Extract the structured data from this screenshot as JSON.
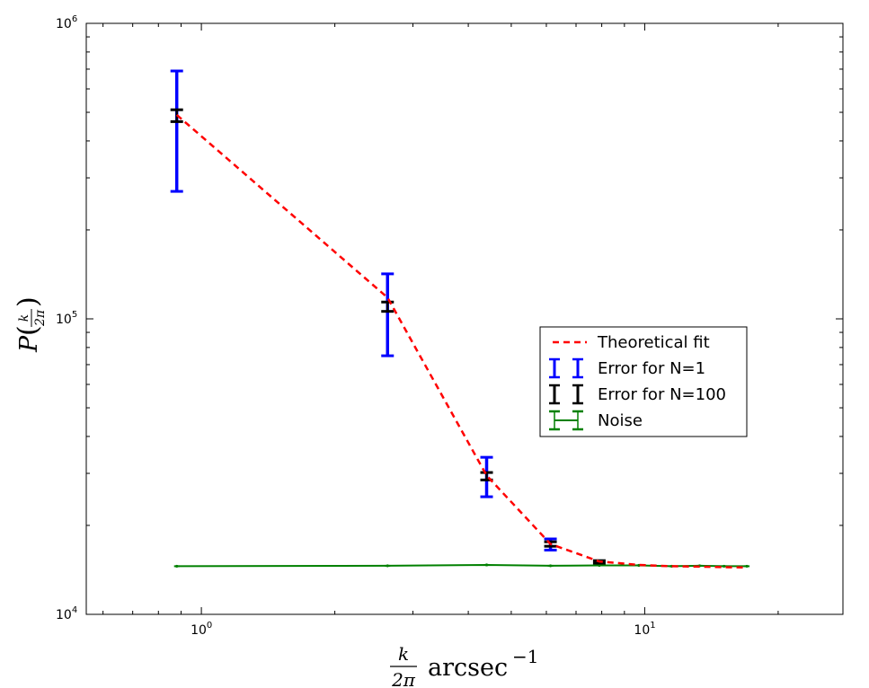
{
  "chart_data": {
    "type": "line",
    "xscale": "log",
    "yscale": "log",
    "xlim": [
      0.55,
      28
    ],
    "ylim": [
      10000,
      1000000
    ],
    "xticks": [
      {
        "base": "10",
        "exp": "0",
        "value": 1
      },
      {
        "base": "10",
        "exp": "1",
        "value": 10
      }
    ],
    "yticks": [
      {
        "base": "10",
        "exp": "4",
        "value": 10000
      },
      {
        "base": "10",
        "exp": "5",
        "value": 100000
      },
      {
        "base": "10",
        "exp": "6",
        "value": 1000000
      }
    ],
    "xlabel": {
      "frac_num": "k",
      "frac_den": "2π",
      "text": "arcsec",
      "exp": "−1"
    },
    "ylabel": {
      "prefix": "P",
      "frac_num": "k",
      "frac_den": "2π"
    },
    "grid": false,
    "legend_position": "center-right",
    "series": [
      {
        "name": "Theoretical fit",
        "kind": "line",
        "color": "#ff0000",
        "style": "dashed",
        "x": [
          0.88,
          2.63,
          4.4,
          6.13,
          7.9,
          9.7,
          11.5,
          13.3,
          15.1,
          17.0
        ],
        "y": [
          490000,
          118000,
          29500,
          17300,
          15100,
          14700,
          14550,
          14500,
          14450,
          14400
        ]
      },
      {
        "name": "Error for N=1",
        "kind": "errorbar",
        "color": "#0000ff",
        "x": [
          0.88,
          2.63,
          4.4,
          6.13
        ],
        "low": [
          270000,
          75000,
          25000,
          16500
        ],
        "high": [
          690000,
          142000,
          34000,
          18000
        ]
      },
      {
        "name": "Error for N=100",
        "kind": "errorbar",
        "color": "#000000",
        "x": [
          0.88,
          2.63,
          4.4,
          6.13,
          7.9
        ],
        "low": [
          465000,
          106000,
          28500,
          17000,
          14900
        ],
        "high": [
          510000,
          114000,
          30200,
          17600,
          15200
        ]
      },
      {
        "name": "Noise",
        "kind": "line-errorbar",
        "color": "#008000",
        "x": [
          0.88,
          2.63,
          4.4,
          6.13,
          7.9,
          9.7,
          11.5,
          13.3,
          15.1,
          17.0
        ],
        "y": [
          14550,
          14600,
          14700,
          14600,
          14650,
          14650,
          14550,
          14600,
          14550,
          14550
        ]
      }
    ]
  }
}
